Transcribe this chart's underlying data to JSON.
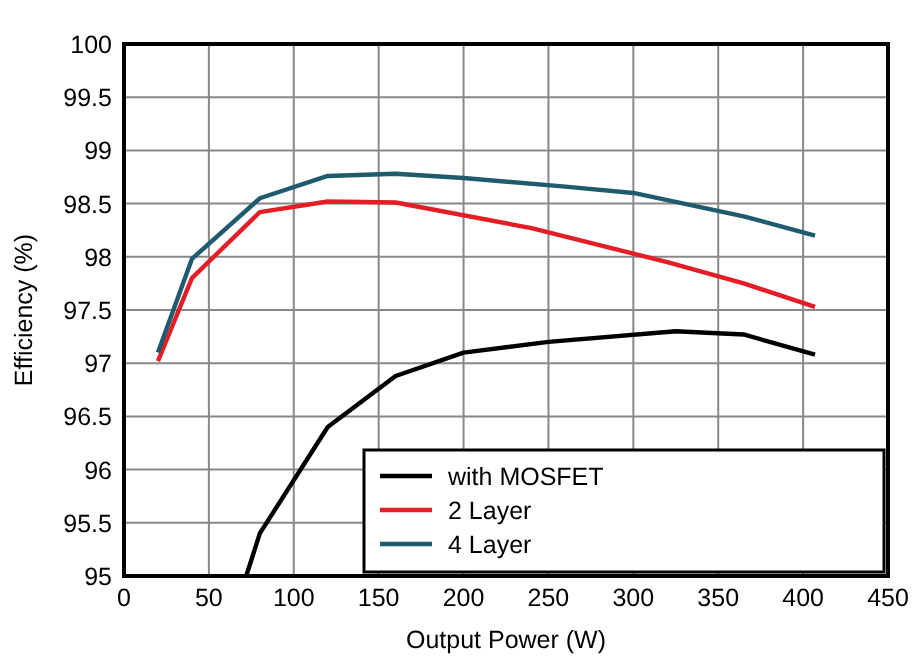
{
  "chart_data": {
    "type": "line",
    "xlabel": "Output Power (W)",
    "ylabel": "Efficiency (%)",
    "xlim": [
      0,
      450
    ],
    "xticks": [
      0,
      50,
      100,
      150,
      200,
      250,
      300,
      350,
      400,
      450
    ],
    "ylim": [
      95,
      100
    ],
    "yticks": [
      95,
      95.5,
      96,
      96.5,
      97,
      97.5,
      98,
      98.5,
      99,
      99.5,
      100
    ],
    "grid": true,
    "legend": "bottom right",
    "line_style": "solid",
    "marker": "none",
    "series": [
      {
        "name": "with MOSFET",
        "color": "#000000",
        "x": [
          72,
          80,
          120,
          160,
          200,
          250,
          325,
          365,
          407
        ],
        "values": [
          95,
          95.4,
          96.4,
          96.88,
          97.1,
          97.2,
          97.3,
          97.27,
          97.08
        ]
      },
      {
        "name": "2 Layer",
        "color": "#e41e26",
        "x": [
          20,
          40,
          80,
          120,
          160,
          240,
          320,
          365,
          407
        ],
        "values": [
          97.02,
          97.8,
          98.42,
          98.52,
          98.51,
          98.27,
          97.95,
          97.75,
          97.53
        ]
      },
      {
        "name": "4 Layer",
        "color": "#1f5a6e",
        "x": [
          20,
          40,
          80,
          120,
          160,
          200,
          260,
          300,
          365,
          407
        ],
        "values": [
          97.1,
          97.98,
          98.55,
          98.76,
          98.78,
          98.74,
          98.66,
          98.6,
          98.38,
          98.2
        ]
      }
    ]
  }
}
